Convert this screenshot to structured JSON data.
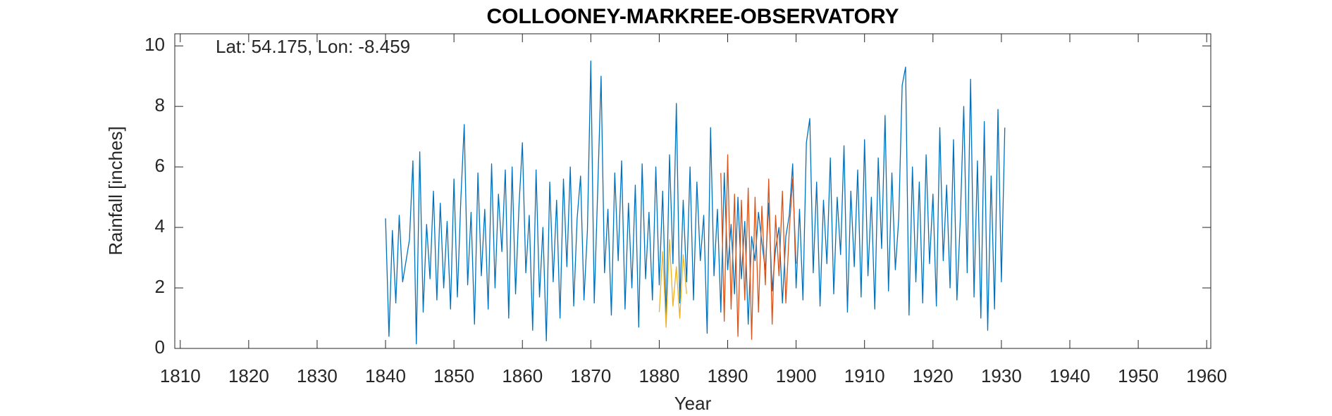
{
  "chart_data": {
    "type": "line",
    "title": "COLLOONEY-MARKREE-OBSERVATORY",
    "annotation": "Lat: 54.175, Lon: -8.459",
    "x_label": "Year",
    "y_label": "Rainfall [inches]",
    "xlim": [
      1809.2,
      1960.6
    ],
    "ylim": [
      0,
      10.4
    ],
    "xticks": [
      1810,
      1820,
      1830,
      1840,
      1850,
      1860,
      1870,
      1880,
      1890,
      1900,
      1910,
      1920,
      1930,
      1940,
      1950,
      1960
    ],
    "yticks": [
      0,
      2,
      4,
      6,
      8,
      10
    ],
    "grid": false,
    "series": [
      {
        "color": "#0072BD",
        "x": [
          1840,
          1840.5,
          1841,
          1841.5,
          1842,
          1842.5,
          1843,
          1843.5,
          1844,
          1844.5,
          1845,
          1845.5,
          1846,
          1846.5,
          1847,
          1847.5,
          1848,
          1848.5,
          1849,
          1849.5,
          1850,
          1850.5,
          1851,
          1851.5,
          1852,
          1852.5,
          1853,
          1853.5,
          1854,
          1854.5,
          1855,
          1855.5,
          1856,
          1856.5,
          1857,
          1857.5,
          1858,
          1858.5,
          1859,
          1859.5,
          1860,
          1860.5,
          1861,
          1861.5,
          1862,
          1862.5,
          1863,
          1863.5,
          1864,
          1864.5,
          1865,
          1865.5,
          1866,
          1866.5,
          1867,
          1867.5,
          1868,
          1868.5,
          1869,
          1869.5,
          1870,
          1870.5,
          1871,
          1871.5,
          1872,
          1872.5,
          1873,
          1873.5,
          1874,
          1874.5,
          1875,
          1875.5,
          1876,
          1876.5,
          1877,
          1877.5,
          1878,
          1878.5,
          1879,
          1879.5,
          1880,
          1880.5,
          1881,
          1881.5,
          1882,
          1882.5,
          1883,
          1883.5,
          1884,
          1884.5,
          1885,
          1885.5,
          1886,
          1886.5,
          1887,
          1887.5,
          1888,
          1888.5,
          1889,
          1889.5,
          1890,
          1890.5,
          1891,
          1891.5,
          1892,
          1892.5,
          1893,
          1893.5,
          1894,
          1894.5,
          1895,
          1895.5,
          1896,
          1896.5,
          1897,
          1897.5,
          1898,
          1898.5,
          1899,
          1899.5,
          1900,
          1900.5,
          1901,
          1901.5,
          1902,
          1902.5,
          1903,
          1903.5,
          1904,
          1904.5,
          1905,
          1905.5,
          1906,
          1906.5,
          1907,
          1907.5,
          1908,
          1908.5,
          1909,
          1909.5,
          1910,
          1910.5,
          1911,
          1911.5,
          1912,
          1912.5,
          1913,
          1913.5,
          1914,
          1914.5,
          1915,
          1915.5,
          1916,
          1916.5,
          1917,
          1917.5,
          1918,
          1918.5,
          1919,
          1919.5,
          1920,
          1920.5,
          1921,
          1921.5,
          1922,
          1922.5,
          1923,
          1923.5,
          1924,
          1924.5,
          1925,
          1925.5,
          1926,
          1926.5,
          1927,
          1927.5,
          1928,
          1928.5,
          1929,
          1929.5,
          1930,
          1930.5
        ],
        "values": [
          4.3,
          0.4,
          3.9,
          1.5,
          4.4,
          2.2,
          2.9,
          3.6,
          6.2,
          0.15,
          6.5,
          1.2,
          4.1,
          2.3,
          5.2,
          1.6,
          4.8,
          2.0,
          4.2,
          1.3,
          5.6,
          1.7,
          4.9,
          7.4,
          2.1,
          4.5,
          0.8,
          5.8,
          2.4,
          4.6,
          1.3,
          6.1,
          2.0,
          5.1,
          3.2,
          5.9,
          1.0,
          6.0,
          1.8,
          4.7,
          6.8,
          2.5,
          4.4,
          0.6,
          5.9,
          1.7,
          4.0,
          0.25,
          5.5,
          2.2,
          4.9,
          1.0,
          5.6,
          2.7,
          6.0,
          1.4,
          4.3,
          5.7,
          1.6,
          3.9,
          9.5,
          1.5,
          5.2,
          9.0,
          2.5,
          4.6,
          1.1,
          5.8,
          2.9,
          6.2,
          1.3,
          4.8,
          2.0,
          5.4,
          0.7,
          6.1,
          2.3,
          4.5,
          1.6,
          6.0,
          2.1,
          5.2,
          1.0,
          6.4,
          2.8,
          8.1,
          1.5,
          4.9,
          2.2,
          6.0,
          1.6,
          5.5,
          2.9,
          4.4,
          0.5,
          7.3,
          2.4,
          4.6,
          1.2,
          5.8,
          2.6,
          4.1,
          1.8,
          5.0,
          2.3,
          4.2,
          0.8,
          3.7,
          2.9,
          4.5,
          3.5,
          2.6,
          4.8,
          1.9,
          3.3,
          4.0,
          1.5,
          3.7,
          4.4,
          6.1,
          2.0,
          4.6,
          1.6,
          6.8,
          7.6,
          2.5,
          5.5,
          1.4,
          4.9,
          2.8,
          6.3,
          1.8,
          5.0,
          3.1,
          6.7,
          1.2,
          5.2,
          2.7,
          5.9,
          1.7,
          6.9,
          2.4,
          5.0,
          1.3,
          6.3,
          3.3,
          7.7,
          1.9,
          5.8,
          2.6,
          4.3,
          8.7,
          9.3,
          1.1,
          6.0,
          2.2,
          5.5,
          1.5,
          6.4,
          2.8,
          5.1,
          1.4,
          7.3,
          2.9,
          5.4,
          2.0,
          6.9,
          1.6,
          4.3,
          8.0,
          2.5,
          8.9,
          1.7,
          6.2,
          1.0,
          7.5,
          0.6,
          5.7,
          1.3,
          7.9,
          2.2,
          7.3
        ]
      },
      {
        "color": "#D95319",
        "x": [
          1889,
          1889.5,
          1890,
          1890.5,
          1891,
          1891.5,
          1892,
          1892.5,
          1893,
          1893.5,
          1894,
          1894.5,
          1895,
          1895.5,
          1896,
          1896.5,
          1897,
          1897.5,
          1898,
          1898.5,
          1899,
          1899.5,
          1900
        ],
        "values": [
          5.8,
          0.9,
          6.4,
          1.3,
          5.1,
          0.4,
          4.9,
          1.6,
          5.3,
          0.3,
          5.0,
          1.2,
          4.7,
          2.1,
          5.6,
          0.8,
          4.4,
          2.4,
          5.2,
          1.5,
          3.9,
          5.6,
          2.8
        ]
      },
      {
        "color": "#EDB120",
        "x": [
          1880,
          1880.5,
          1881,
          1881.5,
          1882,
          1882.5,
          1883,
          1883.5,
          1884
        ],
        "values": [
          1.2,
          3.2,
          0.7,
          3.6,
          1.4,
          2.7,
          1.0,
          3.1,
          1.8
        ]
      }
    ]
  }
}
